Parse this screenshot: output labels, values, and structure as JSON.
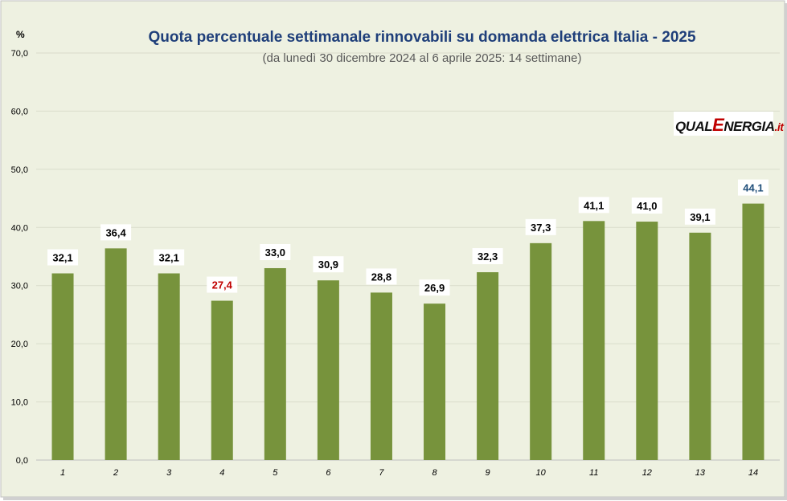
{
  "chart_data": {
    "type": "bar",
    "title": "Quota percentuale settimanale rinnovabili su domanda elettrica Italia - 2025",
    "subtitle": "(da lunedì 30 dicembre 2024 al 6 aprile 2025: 14 settimane)",
    "ylabel": "%",
    "xlabel": "",
    "categories": [
      "1",
      "2",
      "3",
      "4",
      "5",
      "6",
      "7",
      "8",
      "9",
      "10",
      "11",
      "12",
      "13",
      "14"
    ],
    "values": [
      32.1,
      36.4,
      32.1,
      27.4,
      33.0,
      30.9,
      28.8,
      26.9,
      32.3,
      37.3,
      41.1,
      41.0,
      39.1,
      44.1
    ],
    "value_labels": [
      "32,1",
      "36,4",
      "32,1",
      "27,4",
      "33,0",
      "30,9",
      "28,8",
      "26,9",
      "32,3",
      "37,3",
      "41,1",
      "41,0",
      "39,1",
      "44,1"
    ],
    "label_colors": [
      "#000000",
      "#000000",
      "#000000",
      "#c00000",
      "#000000",
      "#000000",
      "#000000",
      "#000000",
      "#000000",
      "#000000",
      "#000000",
      "#000000",
      "#000000",
      "#1f4e79"
    ],
    "y_ticks": [
      "0,0",
      "10,0",
      "20,0",
      "30,0",
      "40,0",
      "50,0",
      "60,0",
      "70,0"
    ],
    "ylim": [
      0,
      70
    ],
    "grid": true,
    "legend": "none",
    "colors": {
      "bar": "#77933c",
      "plot_background": "#eef1e1",
      "gridline": "#d9dccb",
      "outer_border": "#bfbfbf"
    }
  },
  "logo": {
    "text_a": "QUAL",
    "text_b": "E",
    "text_c": "NERGIA",
    "text_d": ".it"
  }
}
